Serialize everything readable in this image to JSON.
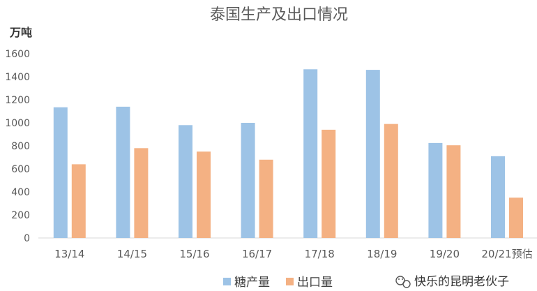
{
  "chart_data": {
    "type": "bar",
    "title": "泰国生产及出口情况",
    "ylabel": "万吨",
    "categories": [
      "13/14",
      "14/15",
      "15/16",
      "16/17",
      "17/18",
      "18/19",
      "19/20",
      "20/21预估"
    ],
    "series": [
      {
        "name": "糖产量",
        "color": "#9DC3E6",
        "values": [
          1135,
          1140,
          980,
          1000,
          1465,
          1460,
          825,
          710
        ]
      },
      {
        "name": "出口量",
        "color": "#F4B183",
        "values": [
          640,
          780,
          750,
          680,
          940,
          990,
          805,
          350
        ]
      }
    ],
    "yticks": [
      "0",
      "200",
      "400",
      "600",
      "800",
      "1000",
      "1200",
      "1400",
      "1600"
    ],
    "ylim": [
      0,
      1600
    ],
    "grid": false,
    "legend_position": "bottom"
  },
  "watermark": {
    "text": "快乐的昆明老伙子",
    "icon": "wechat-icon"
  }
}
